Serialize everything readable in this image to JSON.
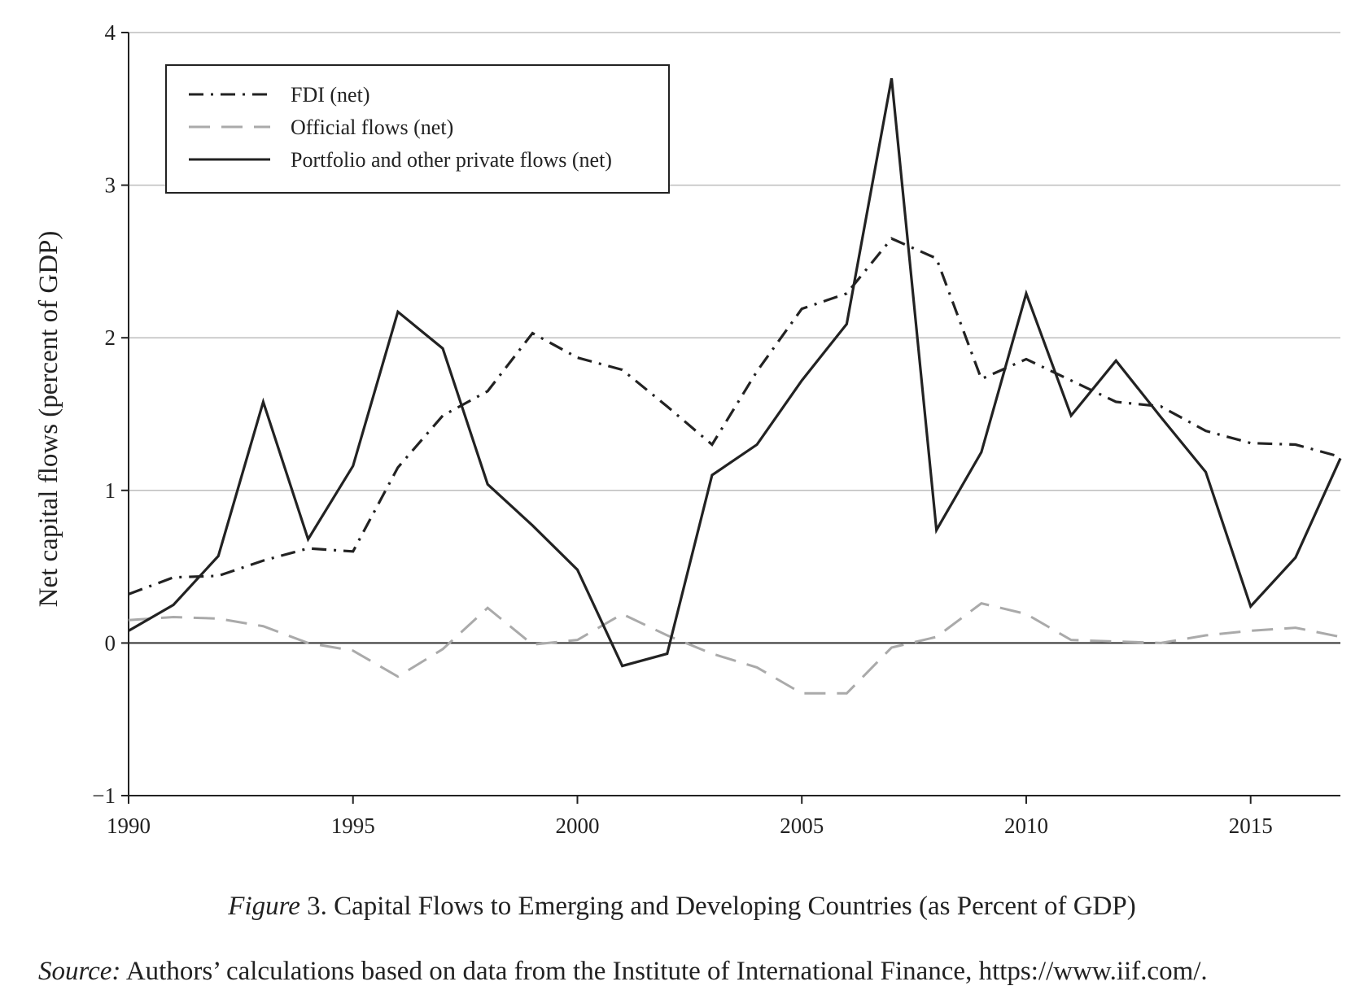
{
  "chart_data": {
    "type": "line",
    "title": "",
    "xlabel": "",
    "ylabel": "Net capital flows (percent of GDP)",
    "xlim": [
      1990,
      2017
    ],
    "ylim": [
      -1,
      4
    ],
    "x_ticks": [
      "1990",
      "1995",
      "2000",
      "2005",
      "2010",
      "2015"
    ],
    "y_ticks": [
      "−1",
      "0",
      "1",
      "2",
      "3",
      "4"
    ],
    "grid": "horizontal",
    "legend_position": "top-left",
    "x": [
      1990,
      1991,
      1992,
      1993,
      1994,
      1995,
      1996,
      1997,
      1998,
      1999,
      2000,
      2001,
      2002,
      2003,
      2004,
      2005,
      2006,
      2007,
      2008,
      2009,
      2010,
      2011,
      2012,
      2013,
      2014,
      2015,
      2016,
      2017
    ],
    "series": [
      {
        "name": "FDI (net)",
        "style": "dash-dot",
        "color": "#222222",
        "values": [
          0.32,
          0.43,
          0.44,
          0.54,
          0.62,
          0.6,
          1.15,
          1.49,
          1.65,
          2.03,
          1.87,
          1.79,
          1.55,
          1.3,
          1.78,
          2.19,
          2.29,
          2.65,
          2.52,
          1.73,
          1.86,
          1.72,
          1.58,
          1.55,
          1.39,
          1.31,
          1.3,
          1.22
        ]
      },
      {
        "name": "Official flows (net)",
        "style": "dashed",
        "color": "#aaaaaa",
        "values": [
          0.15,
          0.17,
          0.16,
          0.11,
          0.0,
          -0.05,
          -0.22,
          -0.04,
          0.23,
          -0.01,
          0.02,
          0.19,
          0.05,
          -0.07,
          -0.16,
          -0.33,
          -0.33,
          -0.03,
          0.04,
          0.26,
          0.19,
          0.02,
          0.01,
          0.0,
          0.05,
          0.08,
          0.1,
          0.04
        ]
      },
      {
        "name": "Portfolio and other private flows (net)",
        "style": "solid",
        "color": "#222222",
        "values": [
          0.08,
          0.25,
          0.57,
          1.58,
          0.68,
          1.16,
          2.17,
          1.93,
          1.04,
          0.77,
          0.48,
          -0.15,
          -0.07,
          1.1,
          1.3,
          1.72,
          2.09,
          3.7,
          0.74,
          1.25,
          2.29,
          1.49,
          1.85,
          1.48,
          1.12,
          0.24,
          0.56,
          1.21
        ]
      }
    ]
  },
  "caption": {
    "figure_label": "Figure",
    "figure_text": " 3. Capital Flows to Emerging and Developing Countries (as Percent of GDP)"
  },
  "source": {
    "label": "Source:",
    "text": " Authors’ calculations based on data from the Institute of International Finance, https://www.iif.com/."
  }
}
